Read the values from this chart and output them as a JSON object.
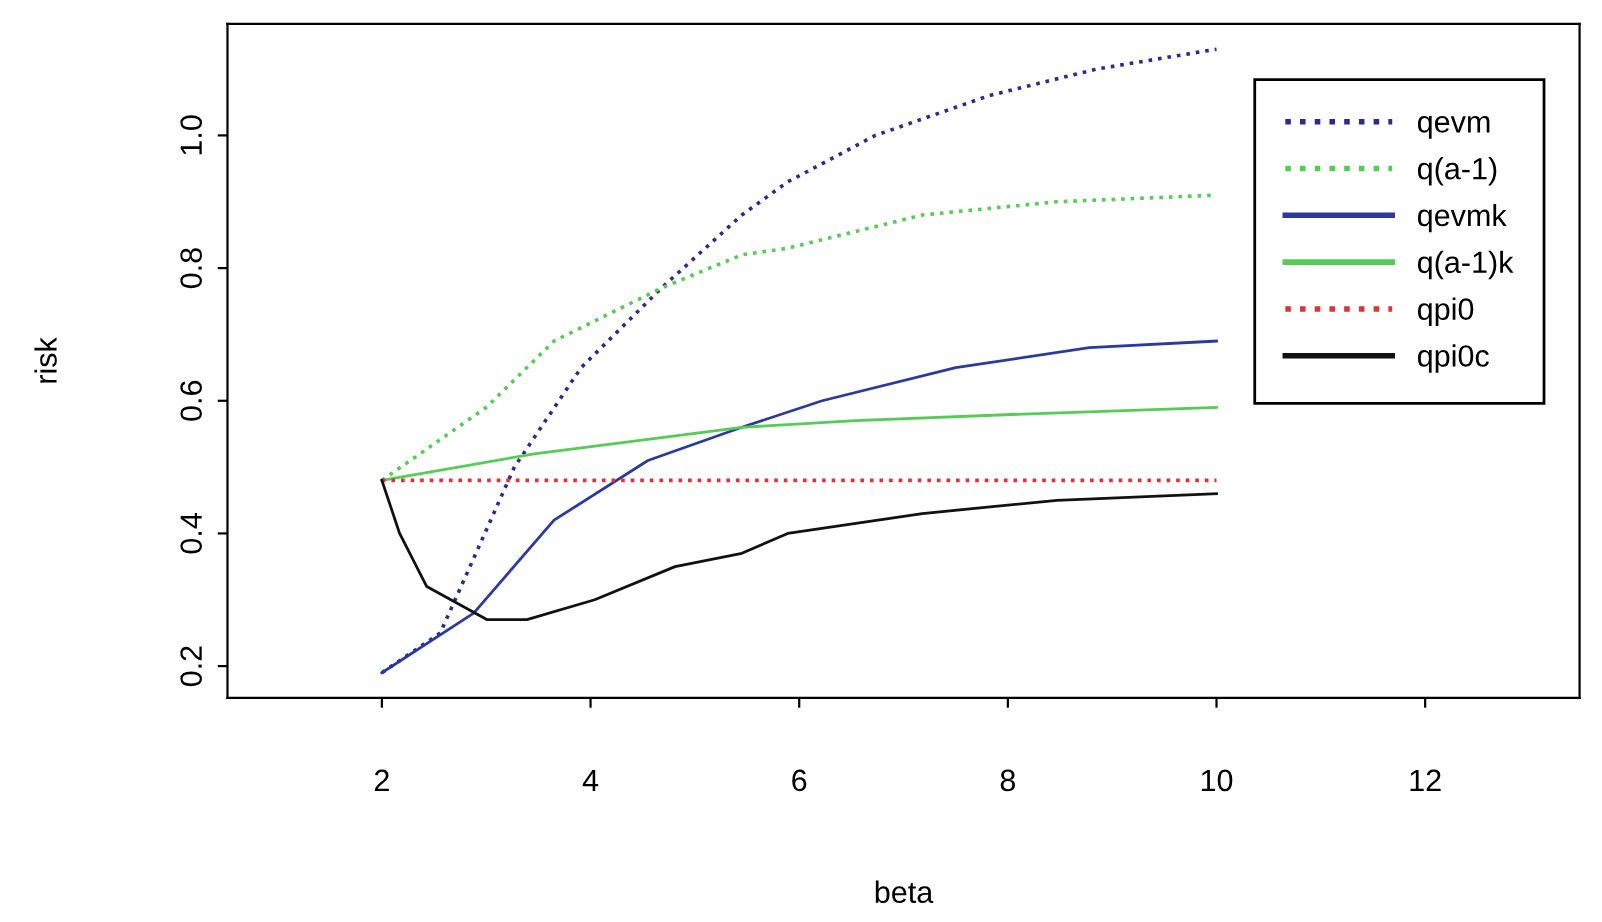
{
  "chart_data": {
    "type": "line",
    "xlabel": "beta",
    "ylabel": "risk",
    "xlim": [
      0.52,
      13.48
    ],
    "xticks": [
      2,
      4,
      6,
      8,
      10,
      12
    ],
    "ylim": [
      0.152,
      1.168
    ],
    "yticks": [
      0.2,
      0.4,
      0.6,
      0.8,
      {
        "value": 1.0,
        "label": "1.0"
      }
    ],
    "grid": false,
    "legend": "top right",
    "marker": "none",
    "series": [
      {
        "name": "qevm",
        "color": "#2b2b8f",
        "line_style": "dotted",
        "x": [
          2,
          2.56,
          3.27,
          3.91,
          4.68,
          5.45,
          5.89,
          6.73,
          7.82,
          8.85,
          10
        ],
        "values": [
          0.19,
          0.25,
          0.5,
          0.65,
          0.77,
          0.88,
          0.93,
          1.0,
          1.06,
          1.1,
          1.13
        ]
      },
      {
        "name": "q(a-1)",
        "color": "#55cc55",
        "line_style": "dotted",
        "x": [
          2,
          3.0,
          3.65,
          4.68,
          5.45,
          5.89,
          7.18,
          8.47,
          10
        ],
        "values": [
          0.48,
          0.59,
          0.69,
          0.77,
          0.82,
          0.83,
          0.88,
          0.9,
          0.91
        ]
      },
      {
        "name": "qevmk",
        "color": "#2b3a9f",
        "line_style": "solid",
        "x": [
          2,
          2.88,
          3.65,
          4.55,
          5.45,
          6.22,
          7.5,
          8.78,
          10
        ],
        "values": [
          0.19,
          0.28,
          0.42,
          0.51,
          0.56,
          0.6,
          0.65,
          0.68,
          0.69
        ]
      },
      {
        "name": "q(a-1)k",
        "color": "#55cc55",
        "line_style": "solid",
        "x": [
          2,
          3.46,
          5.45,
          6.54,
          8.15,
          10
        ],
        "values": [
          0.48,
          0.52,
          0.56,
          0.57,
          0.58,
          0.59
        ]
      },
      {
        "name": "qpi0",
        "color": "#dd3333",
        "line_style": "dotted",
        "x": [
          2,
          10
        ],
        "values": [
          0.48,
          0.48
        ]
      },
      {
        "name": "qpi0c",
        "color": "#111111",
        "line_style": "solid",
        "x": [
          2,
          2.17,
          2.43,
          3.01,
          3.39,
          4.04,
          4.81,
          5.45,
          5.89,
          7.18,
          8.47,
          10
        ],
        "values": [
          0.48,
          0.4,
          0.32,
          0.27,
          0.27,
          0.3,
          0.35,
          0.37,
          0.4,
          0.43,
          0.45,
          0.46
        ]
      }
    ]
  }
}
